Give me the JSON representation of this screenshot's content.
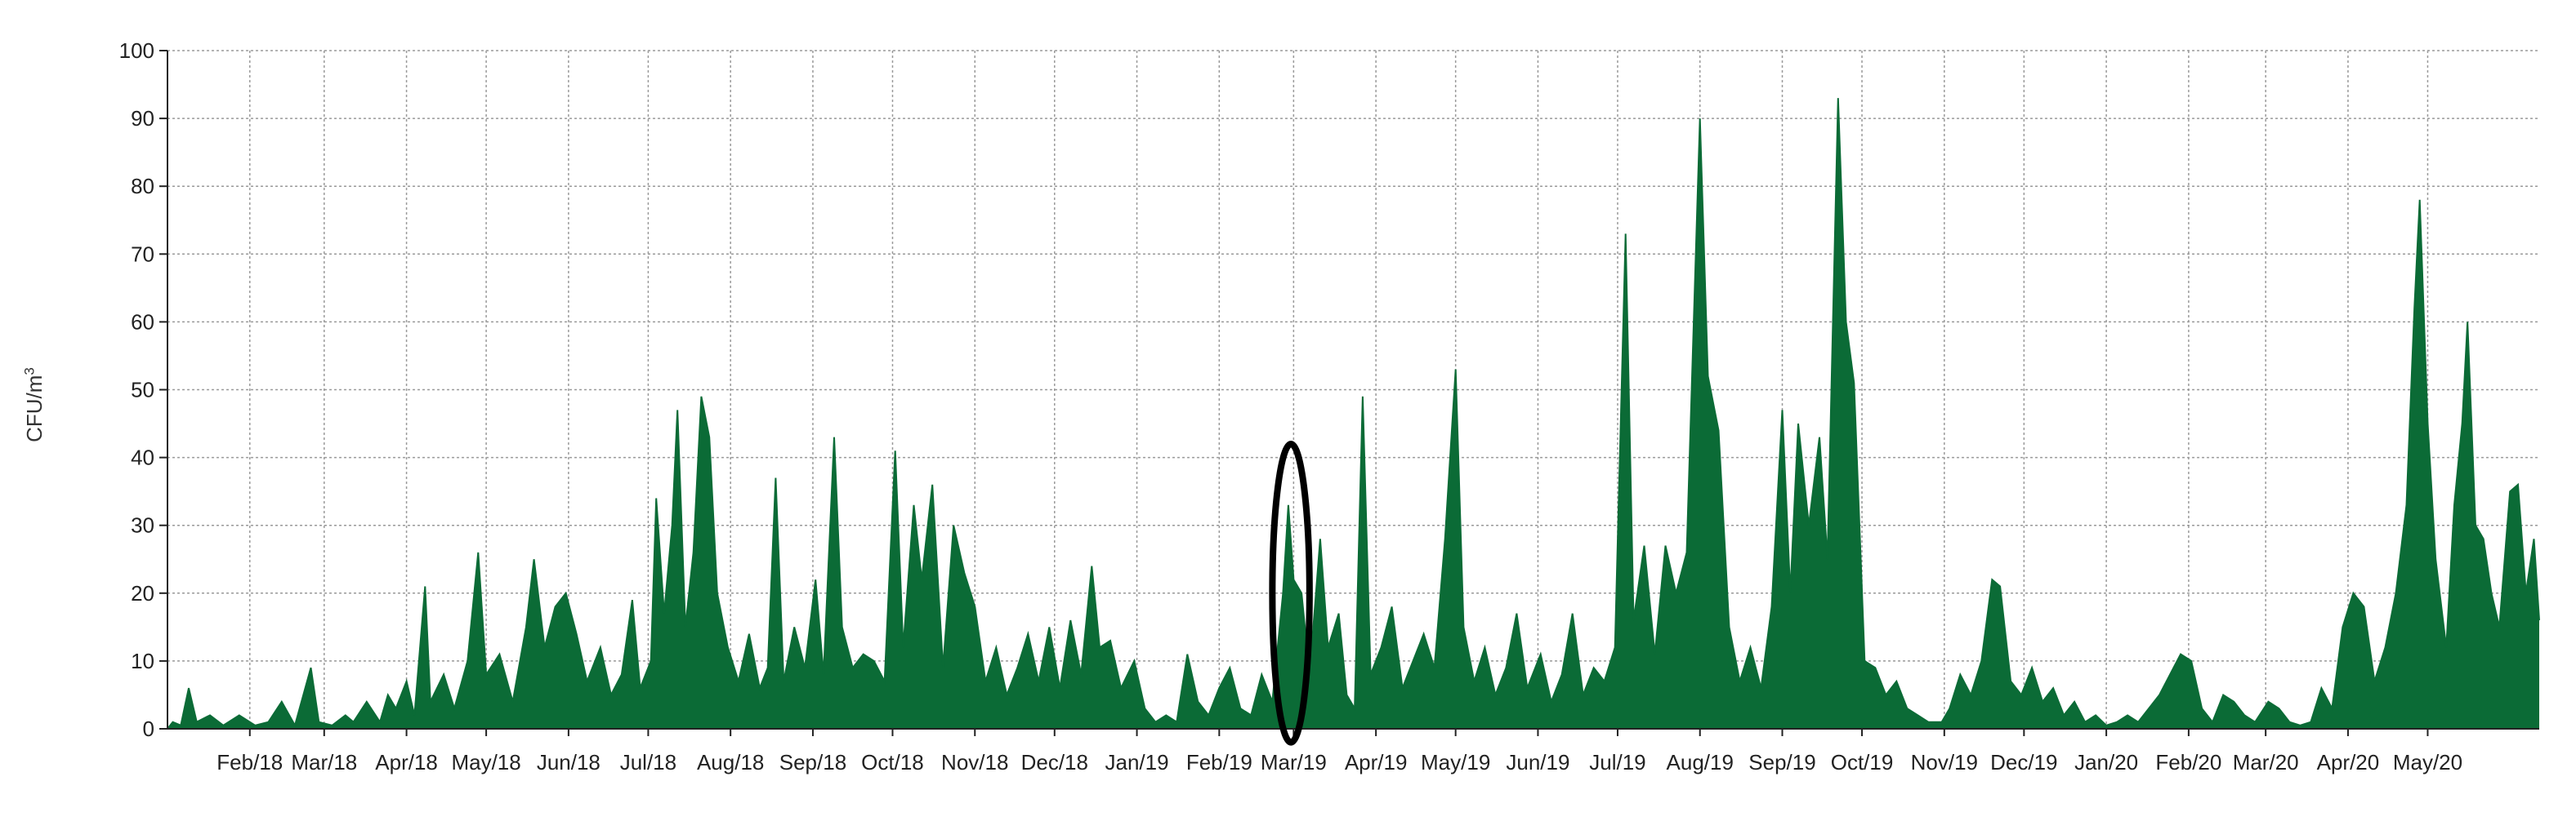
{
  "chart_data": {
    "type": "area",
    "title": "",
    "xlabel": "",
    "ylabel": {
      "base": "CFU/m",
      "superscript": "3"
    },
    "ylim": [
      0,
      100
    ],
    "yticks": [
      0,
      10,
      20,
      30,
      40,
      50,
      60,
      70,
      80,
      90,
      100
    ],
    "xlim": [
      "2018-01-01",
      "2020-06-12"
    ],
    "xtick_labels": [
      "Feb/18",
      "Mar/18",
      "Apr/18",
      "May/18",
      "Jun/18",
      "Jul/18",
      "Aug/18",
      "Sep/18",
      "Oct/18",
      "Nov/18",
      "Dec/18",
      "Jan/19",
      "Feb/19",
      "Mar/19",
      "Apr/19",
      "May/19",
      "Jun/19",
      "Jul/19",
      "Aug/19",
      "Sep/19",
      "Oct/19",
      "Nov/19",
      "Dec/19",
      "Jan/20",
      "Feb/20",
      "Mar/20",
      "Apr/20",
      "May/20"
    ],
    "xtick_dates": [
      "2018-02-01",
      "2018-03-01",
      "2018-04-01",
      "2018-05-01",
      "2018-06-01",
      "2018-07-01",
      "2018-08-01",
      "2018-09-01",
      "2018-10-01",
      "2018-11-01",
      "2018-12-01",
      "2019-01-01",
      "2019-02-01",
      "2019-03-01",
      "2019-04-01",
      "2019-05-01",
      "2019-06-01",
      "2019-07-01",
      "2019-08-01",
      "2019-09-01",
      "2019-10-01",
      "2019-11-01",
      "2019-12-01",
      "2020-01-01",
      "2020-02-01",
      "2020-03-01",
      "2020-04-01",
      "2020-05-01"
    ],
    "grid": true,
    "legend": "none",
    "series": [
      {
        "color": "#0b6b36",
        "points": [
          [
            "2018-01-01",
            0
          ],
          [
            "2018-01-03",
            1
          ],
          [
            "2018-01-06",
            0.5
          ],
          [
            "2018-01-09",
            6
          ],
          [
            "2018-01-12",
            1
          ],
          [
            "2018-01-17",
            2
          ],
          [
            "2018-01-22",
            0.5
          ],
          [
            "2018-01-28",
            2
          ],
          [
            "2018-02-03",
            0.5
          ],
          [
            "2018-02-08",
            1
          ],
          [
            "2018-02-13",
            4
          ],
          [
            "2018-02-18",
            0.5
          ],
          [
            "2018-02-24",
            9
          ],
          [
            "2018-02-27",
            1
          ],
          [
            "2018-03-04",
            0.5
          ],
          [
            "2018-03-09",
            2
          ],
          [
            "2018-03-12",
            1
          ],
          [
            "2018-03-17",
            4
          ],
          [
            "2018-03-22",
            1
          ],
          [
            "2018-03-25",
            5
          ],
          [
            "2018-03-28",
            3
          ],
          [
            "2018-04-01",
            7
          ],
          [
            "2018-04-04",
            2
          ],
          [
            "2018-04-08",
            21
          ],
          [
            "2018-04-10",
            4
          ],
          [
            "2018-04-15",
            8
          ],
          [
            "2018-04-19",
            3
          ],
          [
            "2018-04-24",
            10
          ],
          [
            "2018-04-28",
            26
          ],
          [
            "2018-05-01",
            8
          ],
          [
            "2018-05-06",
            11
          ],
          [
            "2018-05-11",
            4
          ],
          [
            "2018-05-16",
            15
          ],
          [
            "2018-05-19",
            25
          ],
          [
            "2018-05-23",
            12
          ],
          [
            "2018-05-27",
            18
          ],
          [
            "2018-05-31",
            20
          ],
          [
            "2018-06-04",
            14
          ],
          [
            "2018-06-08",
            7
          ],
          [
            "2018-06-13",
            12
          ],
          [
            "2018-06-17",
            5
          ],
          [
            "2018-06-21",
            8
          ],
          [
            "2018-06-25",
            19
          ],
          [
            "2018-06-28",
            6
          ],
          [
            "2018-07-02",
            10
          ],
          [
            "2018-07-04",
            34
          ],
          [
            "2018-07-07",
            17
          ],
          [
            "2018-07-10",
            30
          ],
          [
            "2018-07-12",
            47
          ],
          [
            "2018-07-15",
            15
          ],
          [
            "2018-07-18",
            26
          ],
          [
            "2018-07-21",
            49
          ],
          [
            "2018-07-24",
            43
          ],
          [
            "2018-07-27",
            20
          ],
          [
            "2018-07-31",
            12
          ],
          [
            "2018-08-04",
            7
          ],
          [
            "2018-08-08",
            14
          ],
          [
            "2018-08-12",
            6
          ],
          [
            "2018-08-15",
            9
          ],
          [
            "2018-08-18",
            37
          ],
          [
            "2018-08-21",
            7
          ],
          [
            "2018-08-25",
            15
          ],
          [
            "2018-08-29",
            9
          ],
          [
            "2018-09-02",
            22
          ],
          [
            "2018-09-05",
            8
          ],
          [
            "2018-09-09",
            43
          ],
          [
            "2018-09-12",
            15
          ],
          [
            "2018-09-16",
            9
          ],
          [
            "2018-09-20",
            11
          ],
          [
            "2018-09-24",
            10
          ],
          [
            "2018-09-28",
            7
          ],
          [
            "2018-10-02",
            41
          ],
          [
            "2018-10-05",
            12
          ],
          [
            "2018-10-09",
            33
          ],
          [
            "2018-10-12",
            22
          ],
          [
            "2018-10-16",
            36
          ],
          [
            "2018-10-20",
            9
          ],
          [
            "2018-10-24",
            30
          ],
          [
            "2018-10-28",
            23
          ],
          [
            "2018-11-01",
            18
          ],
          [
            "2018-11-05",
            7
          ],
          [
            "2018-11-09",
            12
          ],
          [
            "2018-11-13",
            5
          ],
          [
            "2018-11-17",
            9
          ],
          [
            "2018-11-21",
            14
          ],
          [
            "2018-11-25",
            7
          ],
          [
            "2018-11-29",
            15
          ],
          [
            "2018-12-03",
            6
          ],
          [
            "2018-12-07",
            16
          ],
          [
            "2018-12-11",
            8
          ],
          [
            "2018-12-15",
            24
          ],
          [
            "2018-12-18",
            12
          ],
          [
            "2018-12-22",
            13
          ],
          [
            "2018-12-26",
            6
          ],
          [
            "2018-12-31",
            10
          ],
          [
            "2019-01-04",
            3
          ],
          [
            "2019-01-08",
            1
          ],
          [
            "2019-01-12",
            2
          ],
          [
            "2019-01-16",
            1
          ],
          [
            "2019-01-20",
            11
          ],
          [
            "2019-01-24",
            4
          ],
          [
            "2019-01-28",
            2
          ],
          [
            "2019-02-01",
            6
          ],
          [
            "2019-02-05",
            9
          ],
          [
            "2019-02-09",
            3
          ],
          [
            "2019-02-13",
            2
          ],
          [
            "2019-02-17",
            8
          ],
          [
            "2019-02-21",
            4
          ],
          [
            "2019-02-25",
            20
          ],
          [
            "2019-02-27",
            33
          ],
          [
            "2019-03-01",
            22
          ],
          [
            "2019-03-04",
            20
          ],
          [
            "2019-03-07",
            8
          ],
          [
            "2019-03-11",
            28
          ],
          [
            "2019-03-14",
            12
          ],
          [
            "2019-03-18",
            17
          ],
          [
            "2019-03-21",
            5
          ],
          [
            "2019-03-24",
            3
          ],
          [
            "2019-03-27",
            49
          ],
          [
            "2019-03-30",
            8
          ],
          [
            "2019-04-03",
            12
          ],
          [
            "2019-04-07",
            18
          ],
          [
            "2019-04-11",
            6
          ],
          [
            "2019-04-15",
            10
          ],
          [
            "2019-04-19",
            14
          ],
          [
            "2019-04-23",
            9
          ],
          [
            "2019-04-27",
            28
          ],
          [
            "2019-05-01",
            53
          ],
          [
            "2019-05-04",
            15
          ],
          [
            "2019-05-08",
            7
          ],
          [
            "2019-05-12",
            12
          ],
          [
            "2019-05-16",
            5
          ],
          [
            "2019-05-20",
            9
          ],
          [
            "2019-05-24",
            17
          ],
          [
            "2019-05-28",
            6
          ],
          [
            "2019-06-02",
            11
          ],
          [
            "2019-06-06",
            4
          ],
          [
            "2019-06-10",
            8
          ],
          [
            "2019-06-14",
            17
          ],
          [
            "2019-06-18",
            5
          ],
          [
            "2019-06-22",
            9
          ],
          [
            "2019-06-26",
            7
          ],
          [
            "2019-06-30",
            12
          ],
          [
            "2019-07-04",
            73
          ],
          [
            "2019-07-07",
            16
          ],
          [
            "2019-07-11",
            27
          ],
          [
            "2019-07-15",
            11
          ],
          [
            "2019-07-19",
            27
          ],
          [
            "2019-07-23",
            20
          ],
          [
            "2019-07-27",
            26
          ],
          [
            "2019-08-01",
            90
          ],
          [
            "2019-08-04",
            52
          ],
          [
            "2019-08-08",
            44
          ],
          [
            "2019-08-12",
            15
          ],
          [
            "2019-08-16",
            7
          ],
          [
            "2019-08-20",
            12
          ],
          [
            "2019-08-24",
            6
          ],
          [
            "2019-08-28",
            18
          ],
          [
            "2019-09-01",
            47
          ],
          [
            "2019-09-04",
            20
          ],
          [
            "2019-09-07",
            45
          ],
          [
            "2019-09-11",
            30
          ],
          [
            "2019-09-15",
            43
          ],
          [
            "2019-09-18",
            25
          ],
          [
            "2019-09-22",
            93
          ],
          [
            "2019-09-25",
            60
          ],
          [
            "2019-09-28",
            51
          ],
          [
            "2019-10-02",
            10
          ],
          [
            "2019-10-06",
            9
          ],
          [
            "2019-10-10",
            5
          ],
          [
            "2019-10-14",
            7
          ],
          [
            "2019-10-18",
            3
          ],
          [
            "2019-10-22",
            2
          ],
          [
            "2019-10-26",
            1
          ],
          [
            "2019-10-31",
            1
          ],
          [
            "2019-11-03",
            3
          ],
          [
            "2019-11-07",
            8
          ],
          [
            "2019-11-11",
            5
          ],
          [
            "2019-11-15",
            10
          ],
          [
            "2019-11-19",
            22
          ],
          [
            "2019-11-22",
            21
          ],
          [
            "2019-11-26",
            7
          ],
          [
            "2019-11-30",
            5
          ],
          [
            "2019-12-04",
            9
          ],
          [
            "2019-12-08",
            4
          ],
          [
            "2019-12-12",
            6
          ],
          [
            "2019-12-16",
            2
          ],
          [
            "2019-12-20",
            4
          ],
          [
            "2019-12-24",
            1
          ],
          [
            "2019-12-28",
            2
          ],
          [
            "2020-01-01",
            0.5
          ],
          [
            "2020-01-05",
            1
          ],
          [
            "2020-01-09",
            2
          ],
          [
            "2020-01-13",
            1
          ],
          [
            "2020-01-17",
            3
          ],
          [
            "2020-01-21",
            5
          ],
          [
            "2020-01-25",
            8
          ],
          [
            "2020-01-29",
            11
          ],
          [
            "2020-02-02",
            10
          ],
          [
            "2020-02-06",
            3
          ],
          [
            "2020-02-10",
            1
          ],
          [
            "2020-02-14",
            5
          ],
          [
            "2020-02-18",
            4
          ],
          [
            "2020-02-22",
            2
          ],
          [
            "2020-02-26",
            1
          ],
          [
            "2020-03-02",
            4
          ],
          [
            "2020-03-06",
            3
          ],
          [
            "2020-03-10",
            1
          ],
          [
            "2020-03-14",
            0.5
          ],
          [
            "2020-03-18",
            1
          ],
          [
            "2020-03-22",
            6
          ],
          [
            "2020-03-26",
            3
          ],
          [
            "2020-03-30",
            15
          ],
          [
            "2020-04-03",
            20
          ],
          [
            "2020-04-07",
            18
          ],
          [
            "2020-04-11",
            7
          ],
          [
            "2020-04-15",
            12
          ],
          [
            "2020-04-19",
            20
          ],
          [
            "2020-04-23",
            33
          ],
          [
            "2020-04-26",
            62
          ],
          [
            "2020-04-28",
            78
          ],
          [
            "2020-05-01",
            45
          ],
          [
            "2020-05-04",
            25
          ],
          [
            "2020-05-08",
            12
          ],
          [
            "2020-05-11",
            33
          ],
          [
            "2020-05-14",
            45
          ],
          [
            "2020-05-16",
            60
          ],
          [
            "2020-05-19",
            30
          ],
          [
            "2020-05-22",
            28
          ],
          [
            "2020-05-25",
            20
          ],
          [
            "2020-05-28",
            15
          ],
          [
            "2020-06-01",
            35
          ],
          [
            "2020-06-04",
            36
          ],
          [
            "2020-06-07",
            20
          ],
          [
            "2020-06-10",
            28
          ],
          [
            "2020-06-12",
            16
          ]
        ]
      }
    ],
    "annotations": [
      {
        "type": "ellipse",
        "center_date": "2019-02-28",
        "center_value": 20,
        "date_halfwidth": 7,
        "value_halfheight": 22,
        "stroke": "#000000"
      }
    ]
  }
}
